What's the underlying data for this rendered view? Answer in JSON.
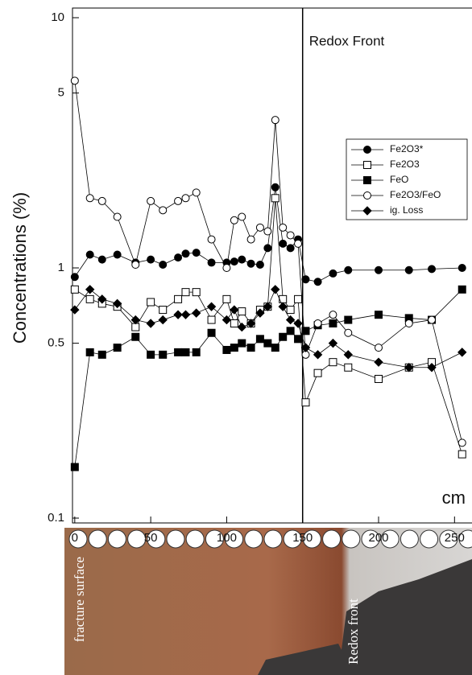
{
  "chart_data": {
    "type": "line",
    "y_label": "Concentrations (%)",
    "x_unit": "cm",
    "annotations": [
      {
        "text": "Redox Front",
        "x": 150
      }
    ],
    "log_y": true,
    "xlim": [
      -1.5,
      261.5
    ],
    "xticks": [
      0,
      50,
      100,
      150,
      200,
      250
    ],
    "ylim": [
      0.1,
      10
    ],
    "yticks": [
      0.1,
      0.5,
      1,
      5,
      10
    ],
    "legend": "upper right",
    "x": [
      0,
      10,
      18,
      28,
      40,
      50,
      58,
      68,
      73,
      80,
      90,
      100,
      105,
      110,
      116,
      122,
      127,
      132,
      137,
      142,
      147,
      152,
      160,
      170,
      180,
      200,
      220,
      235,
      255
    ],
    "series": [
      {
        "name": "Fe2O3*",
        "color": "#000000",
        "marker": "circle-filled",
        "values": [
          0.92,
          1.13,
          1.08,
          1.13,
          1.05,
          1.08,
          1.03,
          1.1,
          1.14,
          1.15,
          1.05,
          1.05,
          1.06,
          1.08,
          1.04,
          1.03,
          1.2,
          2.1,
          1.25,
          1.2,
          1.3,
          0.9,
          0.88,
          0.95,
          0.98,
          0.98,
          0.98,
          0.99,
          1.0
        ]
      },
      {
        "name": "Fe2O3",
        "color": "#000000",
        "marker": "square-open",
        "values": [
          0.82,
          0.75,
          0.72,
          0.7,
          0.58,
          0.73,
          0.68,
          0.75,
          0.8,
          0.8,
          0.62,
          0.75,
          0.6,
          0.67,
          0.6,
          0.68,
          0.7,
          1.9,
          0.75,
          0.68,
          0.75,
          0.29,
          0.38,
          0.42,
          0.4,
          0.36,
          0.4,
          0.42,
          0.18
        ]
      },
      {
        "name": "FeO",
        "color": "#000000",
        "marker": "square-filled",
        "values": [
          0.16,
          0.46,
          0.45,
          0.48,
          0.53,
          0.45,
          0.45,
          0.46,
          0.46,
          0.46,
          0.55,
          0.47,
          0.48,
          0.5,
          0.48,
          0.52,
          0.5,
          0.48,
          0.53,
          0.56,
          0.52,
          0.56,
          0.59,
          0.6,
          0.62,
          0.65,
          0.63,
          0.62,
          0.82
        ]
      },
      {
        "name": "Fe2O3/FeO",
        "color": "#000000",
        "marker": "circle-open",
        "values": [
          5.6,
          1.9,
          1.85,
          1.6,
          1.03,
          1.85,
          1.7,
          1.85,
          1.9,
          2.0,
          1.3,
          1.0,
          1.55,
          1.6,
          1.3,
          1.45,
          1.4,
          3.9,
          1.45,
          1.35,
          1.25,
          0.45,
          0.6,
          0.65,
          0.55,
          0.48,
          0.6,
          0.62,
          0.2
        ]
      },
      {
        "name": "ig. Loss",
        "color": "#000000",
        "marker": "diamond-filled",
        "values": [
          0.68,
          0.82,
          0.75,
          0.72,
          0.62,
          0.6,
          0.62,
          0.65,
          0.65,
          0.66,
          0.7,
          0.62,
          0.68,
          0.58,
          0.6,
          0.66,
          0.7,
          0.82,
          0.7,
          0.62,
          0.6,
          0.48,
          0.45,
          0.5,
          0.45,
          0.42,
          0.4,
          0.4,
          0.46
        ]
      }
    ]
  },
  "photo": {
    "labels": [
      "fracture surface",
      "Redox front"
    ]
  }
}
